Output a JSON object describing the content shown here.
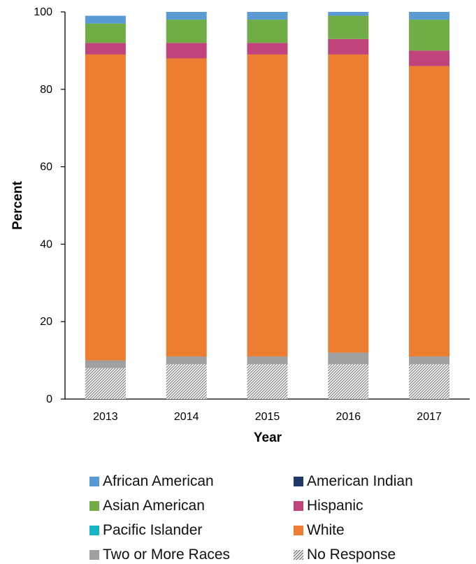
{
  "chart_data": {
    "type": "bar",
    "stacked": true,
    "title": "",
    "xlabel": "Year",
    "ylabel": "Percent",
    "ylim": [
      0,
      100
    ],
    "yticks": [
      0,
      20,
      40,
      60,
      80,
      100
    ],
    "grid": false,
    "legend_position": "bottom",
    "categories": [
      "2013",
      "2014",
      "2015",
      "2016",
      "2017"
    ],
    "series": [
      {
        "name": "No Response",
        "color": "#a0a0a0",
        "pattern": "hatch",
        "values": [
          8,
          9,
          9,
          9,
          9
        ]
      },
      {
        "name": "Two or More Races",
        "color": "#a0a0a0",
        "values": [
          2,
          2,
          2,
          3,
          2
        ]
      },
      {
        "name": "White",
        "color": "#ed7d31",
        "values": [
          79,
          77,
          78,
          77,
          75
        ]
      },
      {
        "name": "Pacific Islander",
        "color": "#17b5c4",
        "values": [
          0,
          0,
          0,
          0,
          0
        ]
      },
      {
        "name": "Hispanic",
        "color": "#c0437b",
        "values": [
          3,
          4,
          3,
          4,
          4
        ]
      },
      {
        "name": "American Indian",
        "color": "#203864",
        "values": [
          0,
          0,
          0,
          0,
          0
        ]
      },
      {
        "name": "Asian American",
        "color": "#70ad47",
        "values": [
          5,
          6,
          6,
          6,
          8
        ]
      },
      {
        "name": "African American",
        "color": "#5b9bd5",
        "values": [
          2,
          2,
          2,
          1,
          2
        ]
      }
    ],
    "legend_order": [
      "African American",
      "American Indian",
      "Asian American",
      "Hispanic",
      "Pacific Islander",
      "White",
      "Two or More Races",
      "No Response"
    ]
  }
}
